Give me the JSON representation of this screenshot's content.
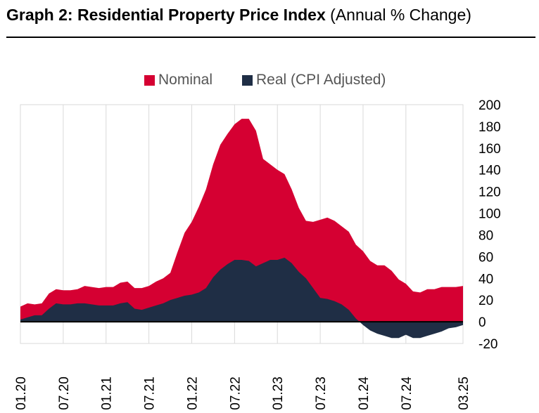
{
  "title": {
    "bold": "Graph 2: Residential Property Price Index",
    "normal": "(Annual % Change)"
  },
  "chart_data": {
    "type": "area",
    "title": "Graph 2: Residential Property Price Index (Annual % Change)",
    "xlabel": "",
    "ylabel": "",
    "ylim": [
      -20,
      200
    ],
    "y_ticks": [
      200,
      180,
      160,
      140,
      120,
      100,
      80,
      60,
      40,
      20,
      0,
      -20
    ],
    "y_axis_position": "right",
    "grid": "vertical",
    "legend_position": "top-center",
    "x_tick_labels": [
      "01.20",
      "07.20",
      "01.21",
      "07.21",
      "01.22",
      "07.22",
      "01.23",
      "07.23",
      "01.24",
      "07.24",
      "03.25"
    ],
    "x_tick_index": [
      0,
      6,
      12,
      18,
      24,
      30,
      36,
      42,
      48,
      54,
      62
    ],
    "months": [
      "01.20",
      "02.20",
      "03.20",
      "04.20",
      "05.20",
      "06.20",
      "07.20",
      "08.20",
      "09.20",
      "10.20",
      "11.20",
      "12.20",
      "01.21",
      "02.21",
      "03.21",
      "04.21",
      "05.21",
      "06.21",
      "07.21",
      "08.21",
      "09.21",
      "10.21",
      "11.21",
      "12.21",
      "01.22",
      "02.22",
      "03.22",
      "04.22",
      "05.22",
      "06.22",
      "07.22",
      "08.22",
      "09.22",
      "10.22",
      "11.22",
      "12.22",
      "01.23",
      "02.23",
      "03.23",
      "04.23",
      "05.23",
      "06.23",
      "07.23",
      "08.23",
      "09.23",
      "10.23",
      "11.23",
      "12.23",
      "01.24",
      "02.24",
      "03.24",
      "04.24",
      "05.24",
      "06.24",
      "07.24",
      "08.24",
      "09.24",
      "10.24",
      "11.24",
      "12.24",
      "01.25",
      "02.25",
      "03.25"
    ],
    "series": [
      {
        "name": "Nominal",
        "color": "#D50032",
        "values": [
          14,
          17,
          16,
          17,
          26,
          30,
          29,
          29,
          30,
          33,
          32,
          31,
          32,
          32,
          36,
          37,
          31,
          31,
          33,
          37,
          40,
          45,
          64,
          82,
          92,
          106,
          122,
          145,
          163,
          173,
          182,
          187,
          187,
          176,
          150,
          145,
          140,
          136,
          122,
          105,
          93,
          92,
          94,
          96,
          93,
          88,
          83,
          71,
          65,
          56,
          52,
          52,
          47,
          39,
          35,
          28,
          27,
          30,
          30,
          32,
          32,
          32,
          33
        ]
      },
      {
        "name": "Real (CPI Adjusted)",
        "color": "#1F2E45",
        "values": [
          2,
          4,
          6,
          6,
          12,
          17,
          16,
          16,
          17,
          17,
          16,
          15,
          15,
          15,
          17,
          18,
          12,
          11,
          13,
          15,
          17,
          20,
          22,
          24,
          25,
          27,
          31,
          41,
          48,
          53,
          57,
          57,
          56,
          51,
          54,
          57,
          57,
          59,
          54,
          46,
          40,
          31,
          22,
          21,
          19,
          16,
          11,
          3,
          -3,
          -8,
          -11,
          -13,
          -15,
          -15,
          -12,
          -15,
          -15,
          -13,
          -11,
          -9,
          -6,
          -5,
          -3
        ]
      }
    ]
  }
}
